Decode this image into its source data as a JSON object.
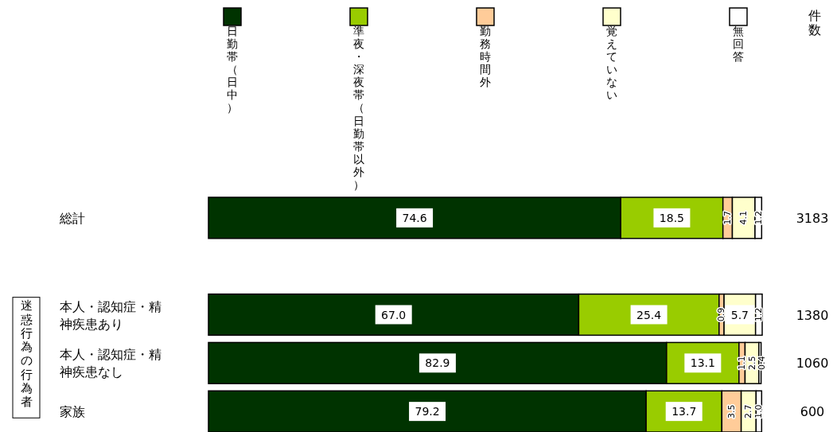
{
  "chart_data": {
    "type": "bar",
    "orientation": "horizontal",
    "stacked": true,
    "legend": "top",
    "ylabel": "迷惑行為の行為者",
    "categories": [
      "総計",
      null,
      "本人・認知症・精神疾患あり",
      "本人・認知症・精神疾患なし",
      "家族"
    ],
    "series": [
      {
        "name": "日勤帯（日中）",
        "color": "#003300",
        "values": [
          74.6,
          null,
          67.0,
          82.9,
          79.2
        ],
        "value_labels": [
          "74.6",
          null,
          "67.0",
          "82.9",
          "79.2"
        ]
      },
      {
        "name": "準夜・深夜帯（日勤帯以外）",
        "color": "#99cc00",
        "values": [
          18.5,
          null,
          25.4,
          13.1,
          13.7
        ],
        "value_labels": [
          "18.5",
          null,
          "25.4",
          "13.1",
          "13.7"
        ]
      },
      {
        "name": "勤務時間外",
        "color": "#ffcc99",
        "values": [
          1.7,
          null,
          0.9,
          1.1,
          3.5
        ],
        "value_labels": [
          "1.7",
          null,
          "0.9",
          "1.1",
          "3.5"
        ]
      },
      {
        "name": "覚えていない",
        "color": "#ffffcc",
        "values": [
          4.1,
          null,
          5.7,
          2.5,
          2.7
        ],
        "value_labels": [
          "4.1",
          null,
          "5.7",
          "2.5",
          "2.7"
        ]
      },
      {
        "name": "無回答",
        "color": "#ffffff",
        "values": [
          1.2,
          null,
          1.2,
          0.4,
          1.0
        ],
        "value_labels": [
          "1.2",
          null,
          "1.2",
          "0.4",
          "1.0"
        ]
      }
    ],
    "annotations": [
      "件数",
      "3183",
      "1380",
      "1060",
      "600"
    ]
  }
}
